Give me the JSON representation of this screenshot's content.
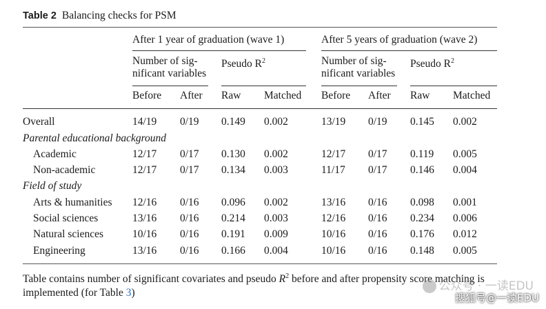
{
  "caption": {
    "number": "Table 2",
    "title": "Balancing checks for PSM"
  },
  "groups": [
    {
      "title": "After 1 year of graduation (wave 1)",
      "count_label_line1": "Number of sig-",
      "count_label_line2": "nificant variables",
      "r2_label": "Pseudo R",
      "r2_sup": "2",
      "sub": [
        "Before",
        "After",
        "Raw",
        "Matched"
      ]
    },
    {
      "title": "After 5 years of graduation (wave 2)",
      "count_label_line1": "Number of sig-",
      "count_label_line2": "nificant variables",
      "r2_label": "Pseudo R",
      "r2_sup": "2",
      "sub": [
        "Before",
        "After",
        "Raw",
        "Matched"
      ]
    }
  ],
  "rows": [
    {
      "label": "Overall",
      "kind": "data",
      "cells": [
        "14/19",
        "0/19",
        "0.149",
        "0.002",
        "13/19",
        "0/19",
        "0.145",
        "0.002"
      ]
    },
    {
      "label": "Parental educational background",
      "kind": "section",
      "cells": []
    },
    {
      "label": "Academic",
      "kind": "sub",
      "cells": [
        "12/17",
        "0/17",
        "0.130",
        "0.002",
        "12/17",
        "0/17",
        "0.119",
        "0.005"
      ]
    },
    {
      "label": "Non-academic",
      "kind": "sub",
      "cells": [
        "12/17",
        "0/17",
        "0.134",
        "0.003",
        "11/17",
        "0/17",
        "0.146",
        "0.004"
      ]
    },
    {
      "label": "Field of study",
      "kind": "section",
      "cells": []
    },
    {
      "label": "Arts & humanities",
      "kind": "sub",
      "cells": [
        "12/16",
        "0/16",
        "0.096",
        "0.002",
        "13/16",
        "0/16",
        "0.098",
        "0.001"
      ]
    },
    {
      "label": "Social sciences",
      "kind": "sub",
      "cells": [
        "13/16",
        "0/16",
        "0.214",
        "0.003",
        "12/16",
        "0/16",
        "0.234",
        "0.006"
      ]
    },
    {
      "label": "Natural sciences",
      "kind": "sub",
      "cells": [
        "10/16",
        "0/16",
        "0.191",
        "0.009",
        "10/16",
        "0/16",
        "0.176",
        "0.012"
      ]
    },
    {
      "label": "Engineering",
      "kind": "sub",
      "cells": [
        "13/16",
        "0/16",
        "0.166",
        "0.004",
        "10/16",
        "0/16",
        "0.148",
        "0.005"
      ]
    }
  ],
  "footnote": {
    "text_a": "Table contains number of significant covariates and pseudo ",
    "r": "R",
    "sup": "2",
    "text_b": " before and after propensity score matching is implemented (for Table ",
    "link": "3",
    "text_c": ")"
  },
  "watermark": {
    "line1": "公众号 · 一读EDU",
    "line2": "搜狐号@一读EDU"
  }
}
